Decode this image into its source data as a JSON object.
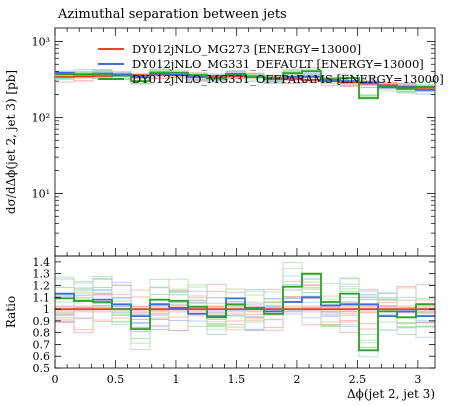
{
  "chart_data": [
    {
      "type": "line",
      "drawstyle": "steps",
      "title": "Azimuthal separation between jets",
      "xlabel": "",
      "ylabel": "dσ/dΔϕ(jet 2, jet 3) [pb]",
      "yscale": "log",
      "xlim": [
        0,
        3.1416
      ],
      "ylim": [
        1.5,
        1500
      ],
      "y_tick_labels": [
        "10¹",
        "10²",
        "10³"
      ],
      "legend_position": "top",
      "x_edges": [
        0,
        0.1571,
        0.3142,
        0.4712,
        0.6283,
        0.7854,
        0.9425,
        1.0996,
        1.2566,
        1.4137,
        1.5708,
        1.7279,
        1.885,
        2.042,
        2.1991,
        2.3562,
        2.5133,
        2.6704,
        2.8274,
        2.9845,
        3.1416
      ],
      "series": [
        {
          "name": "DY012jNLO_MG273 [ENERGY=13000]",
          "color": "#e8432e",
          "values": [
            340,
            345,
            350,
            355,
            360,
            362,
            360,
            355,
            350,
            345,
            340,
            332,
            322,
            312,
            300,
            290,
            278,
            265,
            255,
            245
          ]
        },
        {
          "name": "DY012jNLO_MG331_DEFAULT [ENERGY=13000]",
          "color": "#3a6fd8",
          "values": [
            385,
            370,
            378,
            368,
            340,
            375,
            362,
            340,
            330,
            375,
            345,
            325,
            342,
            344,
            310,
            300,
            290,
            248,
            250,
            230
          ]
        },
        {
          "name": "DY012jNLO_MG331_OFFPARAMS [ENERGY=13000]",
          "color": "#2aa22a",
          "values": [
            370,
            368,
            372,
            355,
            300,
            390,
            385,
            360,
            325,
            360,
            345,
            320,
            382,
            405,
            318,
            328,
            180,
            260,
            238,
            255
          ]
        }
      ]
    },
    {
      "type": "line",
      "drawstyle": "steps",
      "title": "",
      "xlabel": "Δϕ(jet 2, jet 3)",
      "ylabel": "Ratio",
      "xlim": [
        0,
        3.1416
      ],
      "ylim": [
        0.5,
        1.45
      ],
      "x_tick_labels": [
        "0",
        "0.5",
        "1",
        "1.5",
        "2",
        "2.5",
        "3"
      ],
      "y_tick_labels": [
        "0.5",
        "0.6",
        "0.7",
        "0.8",
        "0.9",
        "1",
        "1.1",
        "1.2",
        "1.3",
        "1.4"
      ],
      "reference_band": [
        0.97,
        1.03
      ],
      "series": [
        {
          "name": "DY012jNLO_MG273 [ENERGY=13000]",
          "color": "#e8432e",
          "values": [
            1,
            1,
            1,
            1,
            1,
            1,
            1,
            1,
            1,
            1,
            1,
            1,
            1,
            1,
            1,
            1,
            1,
            1,
            1,
            1
          ]
        },
        {
          "name": "DY012jNLO_MG331_DEFAULT [ENERGY=13000]",
          "color": "#3a6fd8",
          "values": [
            1.13,
            1.07,
            1.08,
            1.04,
            0.94,
            1.04,
            1.01,
            0.96,
            0.94,
            1.09,
            1.01,
            0.98,
            1.06,
            1.1,
            1.03,
            1.04,
            1.04,
            0.94,
            0.98,
            0.94
          ]
        },
        {
          "name": "DY012jNLO_MG331_OFFPARAMS [ENERGY=13000]",
          "color": "#2aa22a",
          "values": [
            1.09,
            1.07,
            1.06,
            1.0,
            0.83,
            1.08,
            1.07,
            1.02,
            0.93,
            1.04,
            1.01,
            0.96,
            1.19,
            1.3,
            1.06,
            1.13,
            0.65,
            0.98,
            0.93,
            1.04
          ]
        }
      ]
    }
  ]
}
